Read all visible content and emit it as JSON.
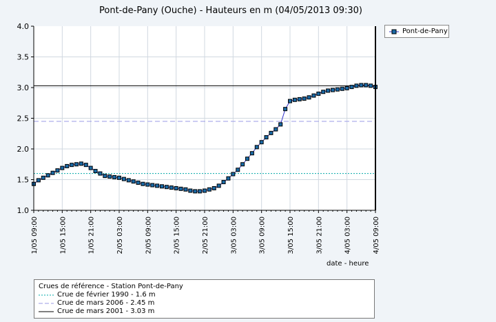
{
  "title": "Pont-de-Pany (Ouche) - Hauteurs en m (04/05/2013 09:30)",
  "legend": {
    "label": "Pont-de-Pany"
  },
  "xaxis_title": "date - heure",
  "reference": {
    "header": "Crues de référence - Station Pont-de-Pany",
    "items": [
      {
        "label": "Crue de février 1990 - 1.6 m",
        "value": 1.6,
        "color": "#00a8a8",
        "style": "dotted"
      },
      {
        "label": "Crue de mars 2006 - 2.45 m",
        "value": 2.45,
        "color": "#9a9ae6",
        "style": "dashed"
      },
      {
        "label": "Crue de mars 2001 - 3.03 m",
        "value": 3.03,
        "color": "#000000",
        "style": "solid"
      }
    ]
  },
  "colors": {
    "series_line": "#3333cc",
    "marker_fill": "#1a6aa6",
    "marker_edge": "#000000"
  },
  "chart_data": {
    "type": "line",
    "title": "Pont-de-Pany (Ouche) - Hauteurs en m (04/05/2013 09:30)",
    "xlabel": "date - heure",
    "ylabel": "",
    "ylim": [
      1.0,
      4.0
    ],
    "yticks": [
      "1.0",
      "1.5",
      "2.0",
      "2.5",
      "3.0",
      "3.5",
      "4.0"
    ],
    "xticks": [
      "1/05 09:00",
      "1/05 15:00",
      "1/05 21:00",
      "2/05 03:00",
      "2/05 09:00",
      "2/05 15:00",
      "2/05 21:00",
      "3/05 03:00",
      "3/05 09:00",
      "3/05 15:00",
      "3/05 21:00",
      "4/05 03:00",
      "4/05 09:00"
    ],
    "x_hours_since_first_tick": [
      0,
      1,
      2,
      3,
      4,
      5,
      6,
      7,
      8,
      9,
      10,
      11,
      12,
      13,
      14,
      15,
      16,
      17,
      18,
      19,
      20,
      21,
      22,
      23,
      24,
      25,
      26,
      27,
      28,
      29,
      30,
      31,
      32,
      33,
      34,
      35,
      36,
      37,
      38,
      39,
      40,
      41,
      42,
      43,
      44,
      45,
      46,
      47,
      48,
      49,
      50,
      51,
      52,
      53,
      54,
      55,
      56,
      57,
      58,
      59,
      60,
      61,
      62,
      63,
      64,
      65,
      66,
      67,
      68,
      69,
      70,
      71,
      72
    ],
    "series": [
      {
        "name": "Pont-de-Pany",
        "values": [
          1.43,
          1.49,
          1.53,
          1.57,
          1.61,
          1.65,
          1.69,
          1.72,
          1.74,
          1.75,
          1.76,
          1.74,
          1.69,
          1.64,
          1.6,
          1.56,
          1.55,
          1.54,
          1.53,
          1.51,
          1.49,
          1.47,
          1.45,
          1.43,
          1.42,
          1.41,
          1.4,
          1.39,
          1.38,
          1.37,
          1.36,
          1.35,
          1.34,
          1.32,
          1.31,
          1.31,
          1.32,
          1.34,
          1.36,
          1.4,
          1.46,
          1.52,
          1.59,
          1.66,
          1.75,
          1.84,
          1.93,
          2.03,
          2.11,
          2.19,
          2.26,
          2.32,
          2.4,
          2.65,
          2.78,
          2.8,
          2.81,
          2.82,
          2.84,
          2.87,
          2.9,
          2.93,
          2.95,
          2.96,
          2.97,
          2.98,
          2.99,
          3.01,
          3.03,
          3.04,
          3.04,
          3.03,
          3.01
        ]
      }
    ],
    "reference_lines": [
      1.6,
      2.45,
      3.03
    ],
    "grid": true,
    "legend_position": "right"
  }
}
